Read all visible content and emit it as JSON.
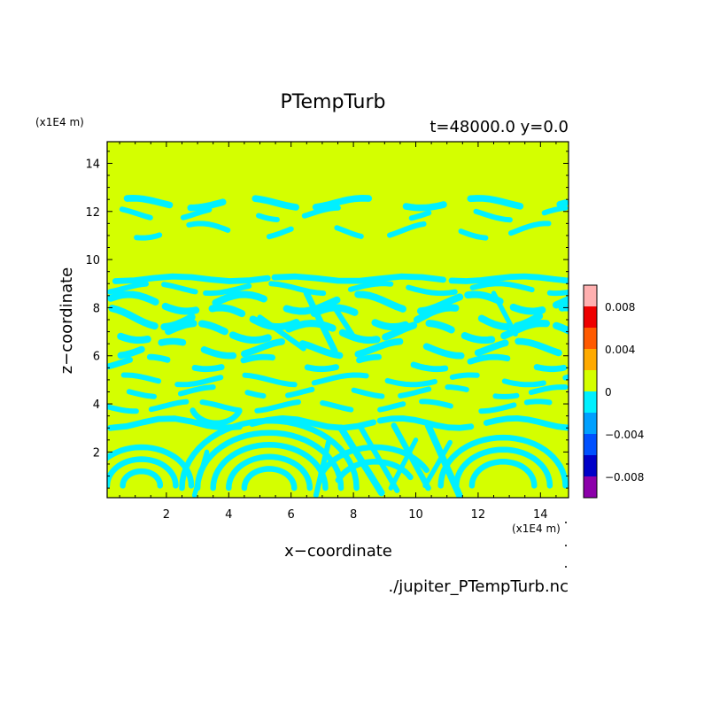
{
  "chart_data": {
    "type": "heatmap",
    "title": "PTempTurb",
    "subtitle": "t=48000.0 y=0.0",
    "xlabel": "x−coordinate",
    "ylabel": "z−coordinate",
    "x_unit": "(x1E4 m)",
    "y_unit": "(x1E4 m)",
    "source_file": "./jupiter_PTempTurb.nc",
    "xlim": [
      0.1,
      14.9
    ],
    "ylim": [
      0.1,
      14.9
    ],
    "x_ticks": [
      2,
      4,
      6,
      8,
      10,
      12,
      14
    ],
    "y_ticks": [
      2,
      4,
      6,
      8,
      10,
      12,
      14
    ],
    "x_tick_labels": [
      "2",
      "4",
      "6",
      "8",
      "10",
      "12",
      "14"
    ],
    "y_tick_labels": [
      "2",
      "4",
      "6",
      "8",
      "10",
      "12",
      "14"
    ],
    "field_colors": {
      "background": "#d4ff00",
      "negative": "#00f0ff"
    },
    "colorbar": {
      "levels": [
        -0.01,
        -0.008,
        -0.006,
        -0.004,
        -0.002,
        0,
        0.002,
        0.004,
        0.006,
        0.008,
        0.01
      ],
      "colors": [
        "#8c00aa",
        "#0000c8",
        "#0050ff",
        "#00a0ff",
        "#00f0ff",
        "#d4ff00",
        "#ffaa00",
        "#ff5a00",
        "#ee0000",
        "#ffb0b0"
      ],
      "tick_values": [
        0.008,
        0.004,
        0,
        -0.004,
        -0.008
      ],
      "tick_labels": [
        "0.008",
        "0.004",
        "0",
        "−0.004",
        "−0.008"
      ]
    },
    "bands": [
      {
        "y": 12.35,
        "x0": 0.2,
        "x1": 14.8,
        "amp": 0.2,
        "thick": 0.28,
        "seg": 1.3,
        "gap": 1.1
      },
      {
        "y": 11.9,
        "x0": 0.2,
        "x1": 14.8,
        "amp": 0.25,
        "thick": 0.22,
        "seg": 0.8,
        "gap": 1.6
      },
      {
        "y": 11.2,
        "x0": 0.1,
        "x1": 14.9,
        "amp": 0.3,
        "thick": 0.22,
        "seg": 0.9,
        "gap": 1.4
      },
      {
        "y": 9.2,
        "x0": 0.1,
        "x1": 14.9,
        "amp": 0.1,
        "thick": 0.25,
        "seg": 5.0,
        "gap": 0.3
      },
      {
        "y": 8.8,
        "x0": 0.1,
        "x1": 14.9,
        "amp": 0.2,
        "thick": 0.22,
        "seg": 1.5,
        "gap": 0.6
      },
      {
        "y": 8.2,
        "x0": 0.1,
        "x1": 14.9,
        "amp": 0.35,
        "thick": 0.3,
        "seg": 1.2,
        "gap": 0.5
      },
      {
        "y": 7.6,
        "x0": 0.1,
        "x1": 14.9,
        "amp": 0.4,
        "thick": 0.3,
        "seg": 1.0,
        "gap": 0.6
      },
      {
        "y": 7.0,
        "x0": 0.1,
        "x1": 14.9,
        "amp": 0.35,
        "thick": 0.3,
        "seg": 1.1,
        "gap": 0.5
      },
      {
        "y": 6.3,
        "x0": 0.1,
        "x1": 14.9,
        "amp": 0.3,
        "thick": 0.28,
        "seg": 1.0,
        "gap": 0.7
      },
      {
        "y": 5.7,
        "x0": 0.1,
        "x1": 14.9,
        "amp": 0.25,
        "thick": 0.25,
        "seg": 0.9,
        "gap": 0.8
      },
      {
        "y": 5.0,
        "x0": 0.1,
        "x1": 14.9,
        "amp": 0.2,
        "thick": 0.22,
        "seg": 1.2,
        "gap": 0.6
      },
      {
        "y": 4.5,
        "x0": 0.1,
        "x1": 14.9,
        "amp": 0.2,
        "thick": 0.22,
        "seg": 0.8,
        "gap": 0.9
      },
      {
        "y": 3.9,
        "x0": 0.1,
        "x1": 14.9,
        "amp": 0.2,
        "thick": 0.22,
        "seg": 1.0,
        "gap": 0.7
      },
      {
        "y": 3.2,
        "x0": 0.1,
        "x1": 14.9,
        "amp": 0.2,
        "thick": 0.25,
        "seg": 4.5,
        "gap": 0.4
      }
    ],
    "swirls": [
      {
        "cx": 5.3,
        "cy": 0.5,
        "r": [
          2.8,
          2.3,
          1.8,
          1.3,
          0.8
        ],
        "a0": 0,
        "a1": 180
      },
      {
        "cx": 1.2,
        "cy": 0.6,
        "r": [
          1.6,
          1.1,
          0.6
        ],
        "a0": 0,
        "a1": 180
      },
      {
        "cx": 8.7,
        "cy": 0.3,
        "r": [
          1.9,
          1.3
        ],
        "a0": 30,
        "a1": 160
      },
      {
        "cx": 12.8,
        "cy": 0.6,
        "r": [
          2.0,
          1.5,
          1.0
        ],
        "a0": 0,
        "a1": 180
      },
      {
        "cx": 3.6,
        "cy": 4.0,
        "r": [
          0.8
        ],
        "a0": 200,
        "a1": 340
      }
    ],
    "diagonals": [
      {
        "x0": 7.6,
        "y0": 3.0,
        "x1": 8.9,
        "y1": 0.3,
        "w": 0.28
      },
      {
        "x0": 8.2,
        "y0": 3.1,
        "x1": 9.4,
        "y1": 0.4,
        "w": 0.22
      },
      {
        "x0": 9.3,
        "y0": 3.1,
        "x1": 10.4,
        "y1": 0.5,
        "w": 0.24
      },
      {
        "x0": 10.4,
        "y0": 3.1,
        "x1": 11.4,
        "y1": 0.2,
        "w": 0.28
      },
      {
        "x0": 7.2,
        "y0": 2.4,
        "x1": 6.8,
        "y1": 0.2,
        "w": 0.22
      },
      {
        "x0": 10.0,
        "y0": 2.5,
        "x1": 9.2,
        "y1": 0.5,
        "w": 0.2
      },
      {
        "x0": 11.1,
        "y0": 2.4,
        "x1": 10.3,
        "y1": 0.6,
        "w": 0.2
      },
      {
        "x0": 3.3,
        "y0": 2.0,
        "x1": 2.9,
        "y1": 0.2,
        "w": 0.2
      },
      {
        "x0": 6.5,
        "y0": 8.6,
        "x1": 7.4,
        "y1": 6.2,
        "w": 0.26
      },
      {
        "x0": 7.3,
        "y0": 8.2,
        "x1": 8.0,
        "y1": 6.8,
        "w": 0.22
      },
      {
        "x0": 5.0,
        "y0": 7.6,
        "x1": 6.4,
        "y1": 6.3,
        "w": 0.22
      },
      {
        "x0": 12.5,
        "y0": 8.6,
        "x1": 13.2,
        "y1": 6.9,
        "w": 0.2
      }
    ]
  }
}
